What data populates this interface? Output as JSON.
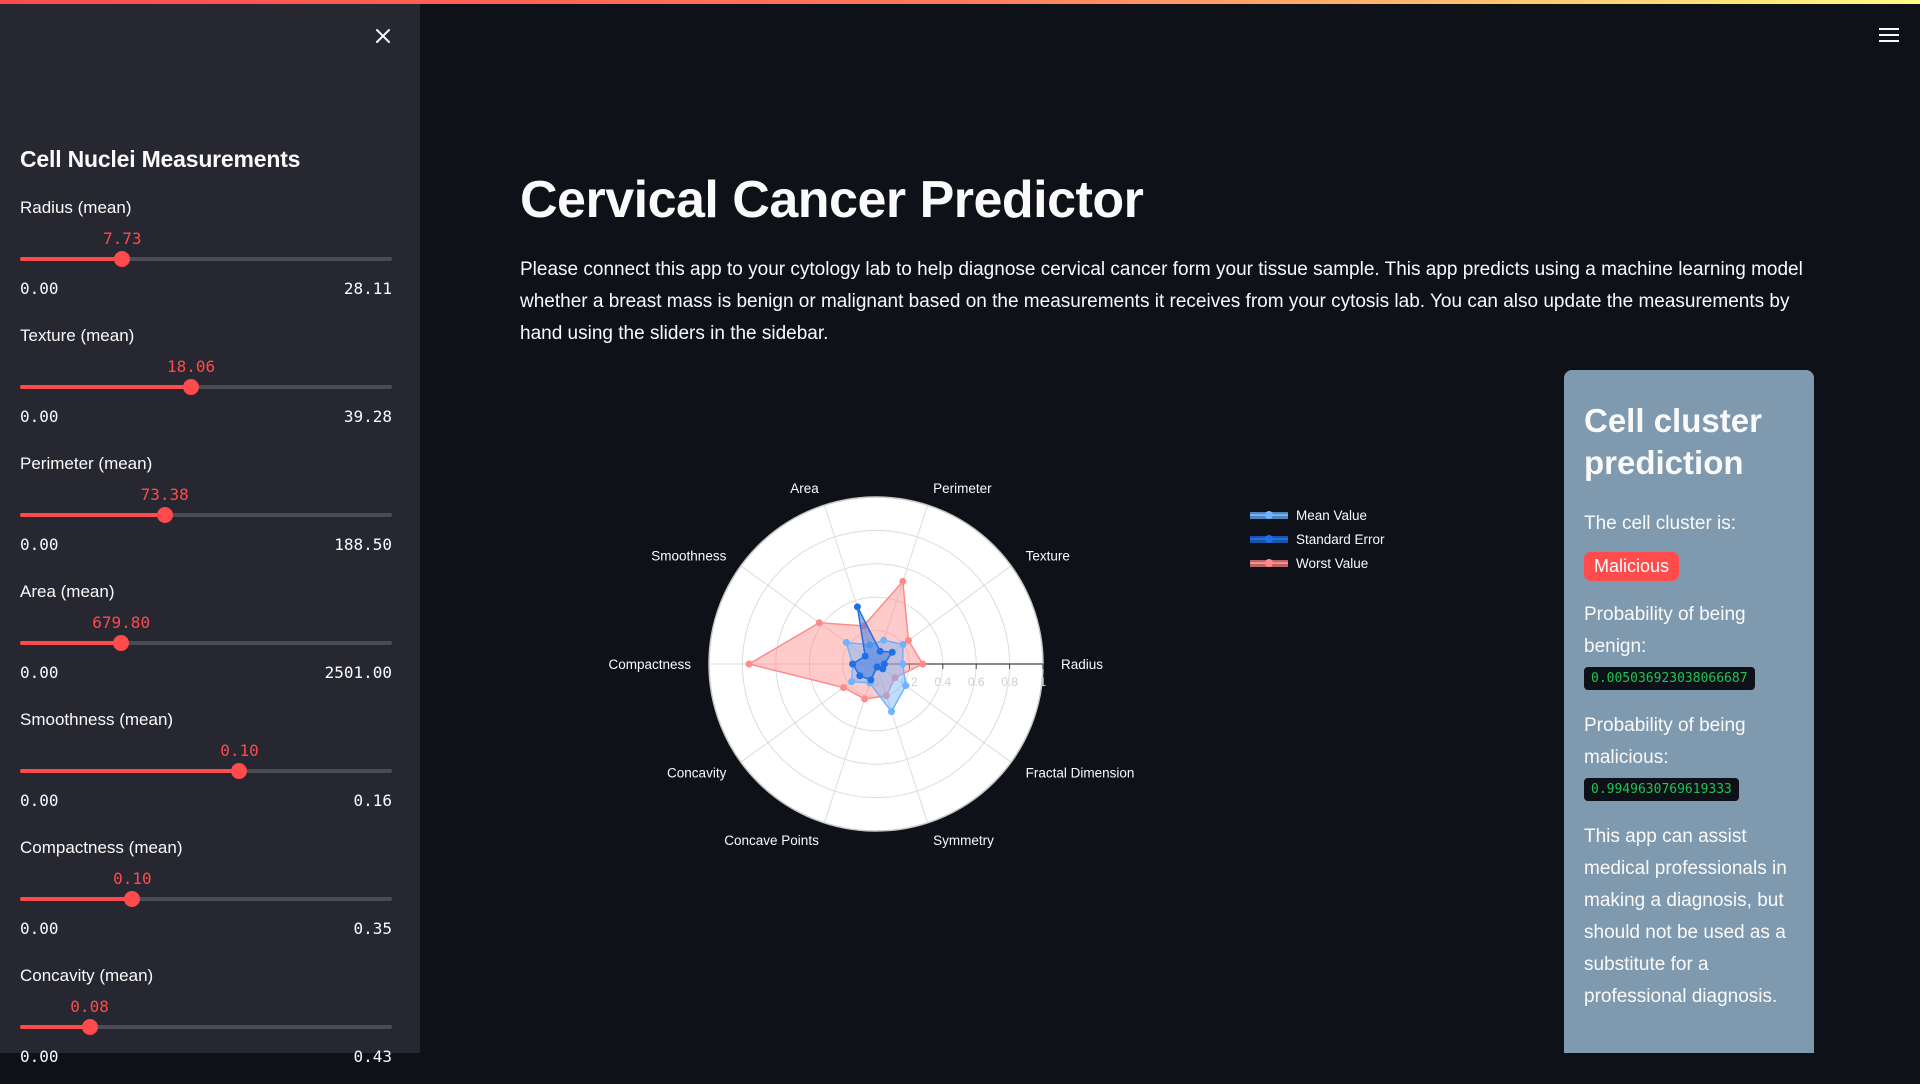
{
  "sidebar": {
    "title": "Cell Nuclei Measurements",
    "sliders": [
      {
        "label": "Radius (mean)",
        "value": "7.73",
        "min": "0.00",
        "max": "28.11",
        "fraction": 0.275
      },
      {
        "label": "Texture (mean)",
        "value": "18.06",
        "min": "0.00",
        "max": "39.28",
        "fraction": 0.46
      },
      {
        "label": "Perimeter (mean)",
        "value": "73.38",
        "min": "0.00",
        "max": "188.50",
        "fraction": 0.389
      },
      {
        "label": "Area (mean)",
        "value": "679.80",
        "min": "0.00",
        "max": "2501.00",
        "fraction": 0.272
      },
      {
        "label": "Smoothness (mean)",
        "value": "0.10",
        "min": "0.00",
        "max": "0.16",
        "fraction": 0.59
      },
      {
        "label": "Compactness (mean)",
        "value": "0.10",
        "min": "0.00",
        "max": "0.35",
        "fraction": 0.302
      },
      {
        "label": "Concavity (mean)",
        "value": "0.08",
        "min": "0.00",
        "max": "0.43",
        "fraction": 0.187
      }
    ]
  },
  "main": {
    "title": "Cervical Cancer Predictor",
    "intro": "Please connect this app to your cytology lab to help diagnose cervical cancer form your tissue sample. This app predicts using a machine learning model whether a breast mass is benign or malignant based on the measurements it receives from your cytosis lab. You can also update the measurements by hand using the sliders in the sidebar."
  },
  "prediction": {
    "title": "Cell cluster prediction",
    "cluster_label": "The cell cluster is:",
    "result": "Malicious",
    "benign_label": "Probability of being benign:",
    "benign_value": "0.005036923038066687",
    "malicious_label": "Probability of being malicious:",
    "malicious_value": "0.9949630769619333",
    "note": "This app can assist medical professionals in making a diagnosis, but should not be used as a substitute for a professional diagnosis."
  },
  "icons": {
    "close": "close-icon",
    "menu": "hamburger-menu-icon"
  },
  "colors": {
    "accent": "#ff4b4b",
    "sidebar": "#262730",
    "background": "#0e1117",
    "card": "#7f99ae",
    "mean": "#6fb3ff",
    "se": "#1f6fe6",
    "worst": "#ff8a8a"
  },
  "chart_data": {
    "type": "radar",
    "categories": [
      "Radius",
      "Texture",
      "Perimeter",
      "Area",
      "Smoothness",
      "Compactness",
      "Concavity",
      "Concave Points",
      "Symmetry",
      "Fractal Dimension"
    ],
    "radial_ticks": [
      "0",
      "0.2",
      "0.4",
      "0.6",
      "0.8",
      "1"
    ],
    "range": [
      0,
      1
    ],
    "series": [
      {
        "name": "Mean Value",
        "color": "#6fb3ff",
        "values": [
          0.16,
          0.2,
          0.15,
          0.12,
          0.22,
          0.14,
          0.18,
          0.12,
          0.3,
          0.22
        ]
      },
      {
        "name": "Standard Error",
        "color": "#1f6fe6",
        "values": [
          0.05,
          0.12,
          0.08,
          0.36,
          0.08,
          0.14,
          0.12,
          0.1,
          0.02,
          0.05
        ]
      },
      {
        "name": "Worst Value",
        "color": "#ff8a8a",
        "values": [
          0.28,
          0.24,
          0.52,
          0.24,
          0.42,
          0.76,
          0.24,
          0.22,
          0.2,
          0.14
        ]
      }
    ],
    "legend_position": "top-right"
  }
}
